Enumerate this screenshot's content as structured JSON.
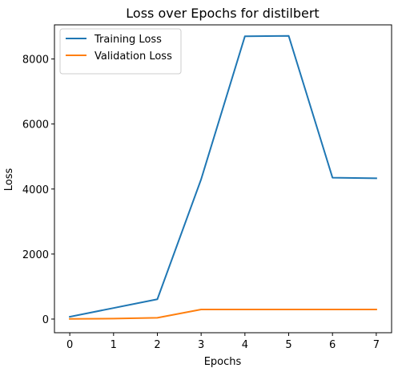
{
  "chart_data": {
    "type": "line",
    "title": "Loss over Epochs for distilbert",
    "xlabel": "Epochs",
    "ylabel": "Loss",
    "x": [
      0,
      1,
      2,
      3,
      4,
      5,
      6,
      7
    ],
    "xticks": [
      0,
      1,
      2,
      3,
      4,
      5,
      6,
      7
    ],
    "yticks": [
      0,
      2000,
      4000,
      6000,
      8000
    ],
    "xlim": [
      -0.35,
      7.35
    ],
    "ylim": [
      -420,
      9050
    ],
    "grid": false,
    "legend_position": "top-left",
    "series": [
      {
        "name": "Training Loss",
        "color": "#1f77b4",
        "values": [
          70,
          340,
          610,
          4300,
          8700,
          8710,
          4350,
          4330
        ]
      },
      {
        "name": "Validation Loss",
        "color": "#ff7f0e",
        "values": [
          5,
          15,
          40,
          295,
          295,
          295,
          295,
          295
        ]
      }
    ]
  }
}
